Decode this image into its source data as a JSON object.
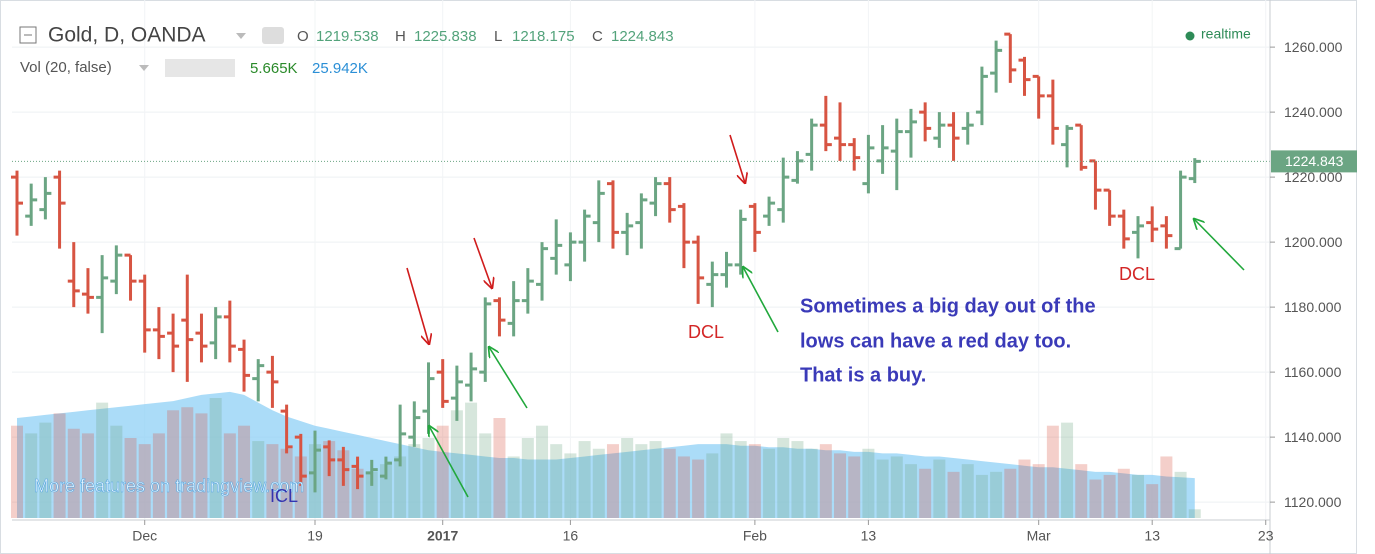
{
  "chart_data": {
    "type": "ohlc",
    "title": "Gold, D, OANDA",
    "ohlc_labels": [
      "O",
      "H",
      "L",
      "C"
    ],
    "volume_title": "Vol (20, false)",
    "volume_last_label": "5.665K",
    "volume_ma_last_label": "25.942K",
    "status": "realtime",
    "watermark": "More features on tradingview.com",
    "annotations": [
      "DCL",
      "DCL",
      "ICL",
      "Sometimes a big day out of the",
      "lows can have a red day too.",
      "That is a buy."
    ],
    "categories": [
      null,
      null,
      null,
      null,
      null,
      null,
      null,
      null,
      null,
      "Dec",
      null,
      null,
      null,
      null,
      null,
      null,
      null,
      null,
      null,
      null,
      null,
      "19",
      null,
      null,
      null,
      null,
      null,
      null,
      null,
      null,
      "2017",
      null,
      null,
      null,
      null,
      null,
      null,
      null,
      null,
      "16",
      null,
      null,
      null,
      null,
      null,
      null,
      null,
      null,
      null,
      null,
      null,
      null,
      "Feb",
      null,
      null,
      null,
      null,
      null,
      null,
      null,
      "13",
      null,
      null,
      null,
      null,
      null,
      null,
      null,
      null,
      null,
      null,
      null,
      "Mar",
      null,
      null,
      null,
      null,
      null,
      null,
      null,
      "13",
      null,
      null,
      null,
      null,
      null,
      null,
      null,
      "23"
    ],
    "open": [
      1220,
      1208,
      1210,
      1220,
      1188,
      1184,
      1183,
      1188,
      1196,
      1188,
      1173,
      1172,
      1176,
      1172,
      1169,
      1177,
      1167,
      1158,
      1160,
      1148,
      1140,
      1129,
      1137,
      1133,
      1131,
      1129,
      1128,
      1133,
      1140,
      1148,
      1160,
      1152,
      1156,
      1160,
      1182,
      1175,
      1182,
      1187,
      1195,
      1193,
      1200,
      1206,
      1218,
      1203,
      1206,
      1212,
      1218,
      1211,
      1200,
      1187,
      1190,
      1193,
      1211,
      1208,
      1210,
      1219,
      1227,
      1236,
      1232,
      1230,
      1218,
      1225,
      1228,
      1234,
      1240,
      1232,
      1236,
      1235,
      1240,
      1252,
      1264,
      1256,
      1251,
      1245,
      1230,
      1236,
      1225,
      1216,
      1208,
      1203,
      1206,
      1205,
      1198,
      1219.538,
      null,
      null,
      null,
      null,
      null
    ],
    "high": [
      1222,
      1218,
      1220,
      1222,
      1200,
      1192,
      1196,
      1199,
      1196,
      1190,
      1180,
      1178,
      1190,
      1178,
      1180,
      1182,
      1170,
      1164,
      1165,
      1150,
      1141,
      1142,
      1139,
      1137,
      1134,
      1133,
      1134,
      1150,
      1151,
      1163,
      1164,
      1162,
      1166,
      1183,
      1183,
      1188,
      1192,
      1200,
      1207,
      1203,
      1210,
      1219,
      1219,
      1209,
      1215,
      1220,
      1220,
      1212,
      1202,
      1194,
      1197,
      1210,
      1212,
      1214,
      1226,
      1228,
      1238,
      1245,
      1243,
      1232,
      1233,
      1236,
      1238,
      1241,
      1243,
      1240,
      1240,
      1240,
      1254,
      1262,
      1264,
      1257,
      1251,
      1250,
      1236,
      1236,
      1225,
      1216,
      1210,
      1208,
      1211,
      1208,
      1222,
      1225.838,
      null,
      null,
      null,
      null,
      null
    ],
    "low": [
      1202,
      1205,
      1207,
      1198,
      1180,
      1178,
      1172,
      1184,
      1182,
      1166,
      1164,
      1160,
      1157,
      1163,
      1164,
      1163,
      1154,
      1151,
      1149,
      1135,
      1125,
      1123,
      1128,
      1125,
      1124,
      1125,
      1127,
      1131,
      1137,
      1141,
      1149,
      1145,
      1151,
      1157,
      1171,
      1171,
      1178,
      1182,
      1190,
      1188,
      1194,
      1200,
      1198,
      1196,
      1198,
      1208,
      1206,
      1192,
      1181,
      1180,
      1186,
      1190,
      1197,
      1205,
      1206,
      1218,
      1222,
      1228,
      1225,
      1222,
      1215,
      1221,
      1216,
      1226,
      1231,
      1229,
      1225,
      1230,
      1236,
      1246,
      1249,
      1245,
      1238,
      1230,
      1223,
      1222,
      1210,
      1205,
      1198,
      1195,
      1200,
      1198,
      1198,
      1218.175,
      null,
      null,
      null,
      null,
      null
    ],
    "close": [
      1212,
      1213,
      1215,
      1212,
      1185,
      1183,
      1189,
      1196,
      1188,
      1173,
      1171,
      1168,
      1170,
      1168,
      1177,
      1168,
      1159,
      1162,
      1157,
      1137,
      1128,
      1136,
      1133,
      1130,
      1128,
      1130,
      1132,
      1141,
      1146,
      1158,
      1151,
      1157,
      1161,
      1181,
      1176,
      1182,
      1188,
      1198,
      1199,
      1200,
      1208,
      1215,
      1203,
      1205,
      1213,
      1218,
      1210,
      1200,
      1189,
      1190,
      1193,
      1207,
      1203,
      1212,
      1220,
      1225,
      1236,
      1230,
      1230,
      1226,
      1229,
      1229,
      1234,
      1237,
      1235,
      1236,
      1232,
      1236,
      1251,
      1259,
      1253,
      1250,
      1245,
      1235,
      1235,
      1223,
      1216,
      1208,
      1201,
      1205,
      1204,
      1202,
      1220,
      1224.843,
      null,
      null,
      null,
      null,
      null
    ],
    "volume": [
      60,
      55,
      62,
      68,
      58,
      55,
      75,
      60,
      52,
      48,
      55,
      70,
      72,
      68,
      78,
      55,
      60,
      50,
      48,
      45,
      40,
      48,
      50,
      44,
      32,
      30,
      35,
      40,
      48,
      52,
      60,
      70,
      75,
      55,
      65,
      40,
      52,
      60,
      48,
      42,
      50,
      45,
      48,
      52,
      48,
      50,
      45,
      40,
      38,
      42,
      55,
      50,
      48,
      45,
      52,
      50,
      45,
      48,
      42,
      40,
      45,
      38,
      40,
      35,
      32,
      38,
      30,
      35,
      28,
      30,
      32,
      38,
      35,
      60,
      62,
      35,
      25,
      28,
      32,
      28,
      22,
      40,
      30,
      5.665,
      null,
      null,
      null,
      null,
      null
    ],
    "volume_ma": [
      65,
      66,
      67,
      68,
      69,
      70,
      71,
      72,
      73,
      74,
      75,
      76,
      78,
      80,
      81,
      82,
      80,
      75,
      70,
      66,
      63,
      60,
      58,
      56,
      54,
      52,
      50,
      48,
      46,
      44,
      43,
      42,
      41,
      40,
      39,
      39,
      38,
      38,
      38,
      39,
      40,
      41,
      42,
      43,
      44,
      45,
      46,
      47,
      48,
      48,
      48,
      47,
      47,
      46,
      46,
      45,
      45,
      44,
      44,
      43,
      43,
      42,
      42,
      41,
      40,
      40,
      39,
      38,
      37,
      36,
      35,
      34,
      33,
      33,
      32,
      31,
      30,
      30,
      29,
      28,
      28,
      27,
      26.5,
      25.942,
      null,
      null,
      null,
      null,
      null
    ],
    "up_color": "#6ba583",
    "down_color": "#d75442",
    "volume_ma_color": "#8fd0f5",
    "ylim": [
      1114.5,
      1274.5
    ],
    "yticks": [
      {
        "value": 1120,
        "label": "1120.000"
      },
      {
        "value": 1140,
        "label": "1140.000"
      },
      {
        "value": 1160,
        "label": "1160.000"
      },
      {
        "value": 1180,
        "label": "1180.000"
      },
      {
        "value": 1200,
        "label": "1200.000"
      },
      {
        "value": 1220,
        "label": "1220.000"
      },
      {
        "value": 1240,
        "label": "1240.000"
      },
      {
        "value": 1260,
        "label": "1260.000"
      }
    ],
    "grid": true
  }
}
